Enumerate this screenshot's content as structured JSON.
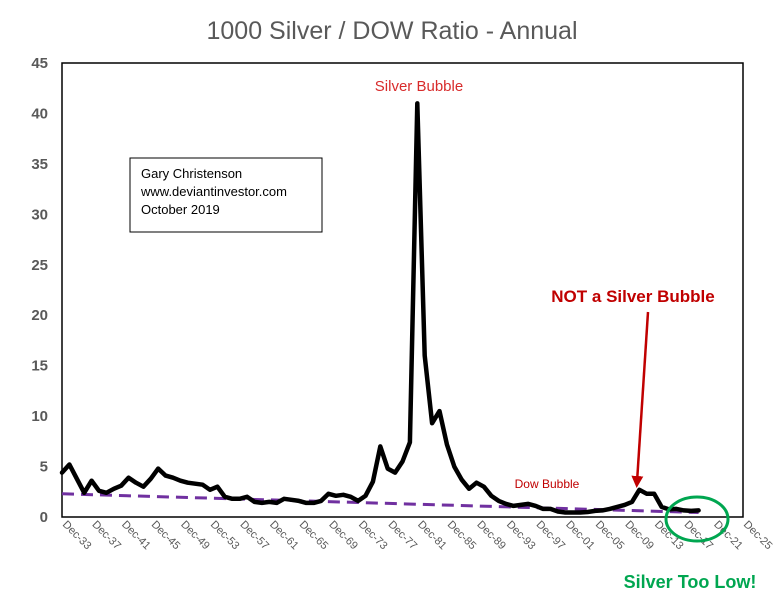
{
  "chart_data": {
    "type": "line",
    "title": "1000 Silver / DOW Ratio - Annual",
    "xlabel": "",
    "ylabel": "",
    "ylim": [
      0,
      45
    ],
    "y_ticks": [
      0,
      5,
      10,
      15,
      20,
      25,
      30,
      35,
      40,
      45
    ],
    "x_ticks": [
      "Dec-33",
      "Dec-37",
      "Dec-41",
      "Dec-45",
      "Dec-49",
      "Dec-53",
      "Dec-57",
      "Dec-61",
      "Dec-65",
      "Dec-69",
      "Dec-73",
      "Dec-77",
      "Dec-81",
      "Dec-85",
      "Dec-89",
      "Dec-93",
      "Dec-97",
      "Dec-01",
      "Dec-05",
      "Dec-09",
      "Dec-13",
      "Dec-17",
      "Dec-21",
      "Dec-25"
    ],
    "grid": false,
    "legend": "none",
    "colors": {
      "series": "#000000",
      "trend": "#7030a0",
      "annotation_red": "#c00000",
      "annotation_bubble": "#d82b2b",
      "circle": "#00a650",
      "axis_text": "#595959"
    },
    "series": [
      {
        "x": [
          1933,
          1934,
          1935,
          1936,
          1937,
          1938,
          1939,
          1940,
          1941,
          1942,
          1943,
          1944,
          1945,
          1946,
          1947,
          1948,
          1949,
          1950,
          1951,
          1952,
          1953,
          1954,
          1955,
          1956,
          1957,
          1958,
          1959,
          1960,
          1961,
          1962,
          1963,
          1964,
          1965,
          1966,
          1967,
          1968,
          1969,
          1970,
          1971,
          1972,
          1973,
          1974,
          1975,
          1976,
          1977,
          1978,
          1979,
          1980,
          1981,
          1982,
          1983,
          1984,
          1985,
          1986,
          1987,
          1988,
          1989,
          1990,
          1991,
          1992,
          1993,
          1994,
          1995,
          1996,
          1997,
          1998,
          1999,
          2000,
          2001,
          2002,
          2003,
          2004,
          2005,
          2006,
          2007,
          2008,
          2009,
          2010,
          2011,
          2012,
          2013,
          2014,
          2015,
          2016,
          2017,
          2018,
          2019
        ],
        "values": [
          4.4,
          5.2,
          3.8,
          2.4,
          3.6,
          2.6,
          2.4,
          2.8,
          3.1,
          3.9,
          3.4,
          3.0,
          3.8,
          4.8,
          4.1,
          3.9,
          3.6,
          3.4,
          3.3,
          3.2,
          2.7,
          3.0,
          2.0,
          1.8,
          1.8,
          2.0,
          1.5,
          1.4,
          1.5,
          1.4,
          1.8,
          1.7,
          1.6,
          1.4,
          1.4,
          1.6,
          2.3,
          2.1,
          2.2,
          2.0,
          1.6,
          2.1,
          3.5,
          7.0,
          4.8,
          4.4,
          5.5,
          7.4,
          41.0,
          16.0,
          9.3,
          10.5,
          7.2,
          5.0,
          3.7,
          2.8,
          3.4,
          3.0,
          2.1,
          1.6,
          1.3,
          1.1,
          1.2,
          1.3,
          1.1,
          0.8,
          0.8,
          0.55,
          0.45,
          0.45,
          0.45,
          0.5,
          0.6,
          0.65,
          0.8,
          1.0,
          1.2,
          1.5,
          2.7,
          2.3,
          2.3,
          1.0,
          0.75,
          0.8,
          0.65,
          0.6,
          0.65
        ]
      },
      {
        "x": [
          1933,
          2019
        ],
        "values": [
          2.3,
          0.45
        ],
        "style": "dashed"
      }
    ],
    "annotations": [
      "Silver Bubble",
      "NOT a Silver Bubble",
      "Dow Bubble",
      "Silver Too Low!"
    ],
    "text_box": [
      "Gary Christenson",
      "www.deviantinvestor.com",
      "October 2019"
    ]
  }
}
